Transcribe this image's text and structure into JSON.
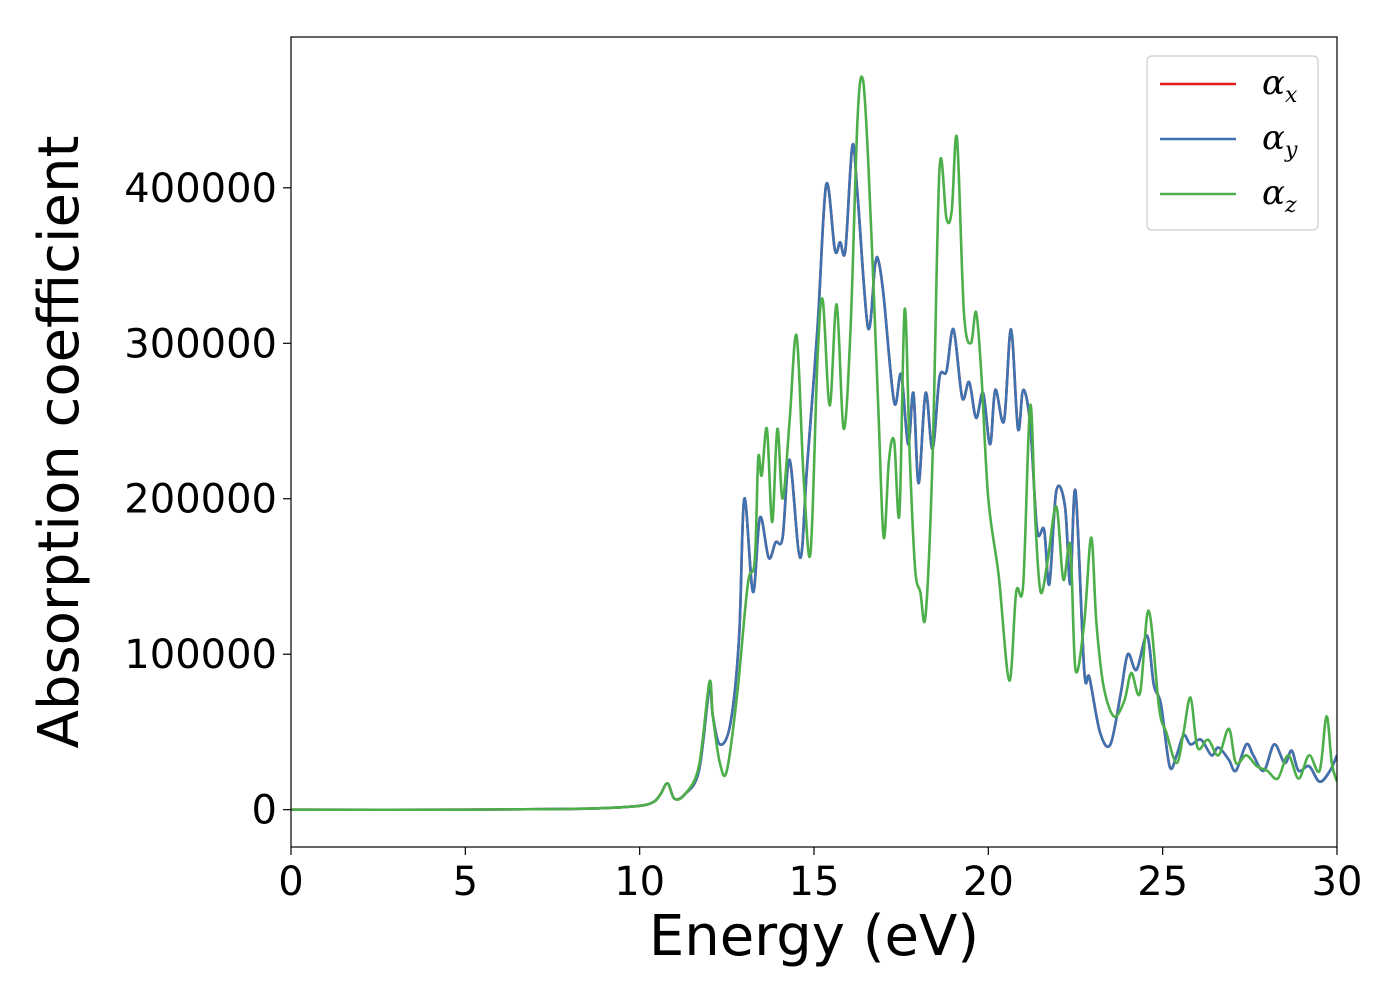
{
  "chart_data": {
    "type": "line",
    "title": "",
    "xlabel": "Energy (eV)",
    "ylabel": "Absorption coefficient",
    "xlim": [
      0,
      30
    ],
    "ylim": [
      -24000,
      497000
    ],
    "xticks": [
      0,
      5,
      10,
      15,
      20,
      25,
      30
    ],
    "yticks": [
      0,
      100000,
      200000,
      300000,
      400000
    ],
    "grid": false,
    "legend": {
      "position": "top-right"
    },
    "series": [
      {
        "name": "αx",
        "label_main": "α",
        "label_sub": "x",
        "color": "#e41a1c",
        "x": [
          0,
          5,
          8,
          9,
          10,
          10.4,
          10.6,
          10.8,
          11.0,
          11.3,
          11.7,
          12.0,
          12.1,
          12.3,
          12.6,
          12.85,
          13.0,
          13.25,
          13.45,
          13.7,
          13.9,
          14.1,
          14.3,
          14.6,
          14.8,
          15.1,
          15.35,
          15.6,
          15.75,
          15.9,
          16.1,
          16.25,
          16.55,
          16.75,
          16.85,
          17.0,
          17.3,
          17.5,
          17.7,
          17.85,
          18.0,
          18.2,
          18.4,
          18.6,
          18.8,
          19.0,
          19.25,
          19.45,
          19.65,
          19.85,
          20.05,
          20.2,
          20.45,
          20.65,
          20.85,
          21.0,
          21.2,
          21.4,
          21.6,
          21.75,
          21.95,
          22.2,
          22.35,
          22.5,
          22.75,
          22.9,
          23.2,
          23.5,
          23.8,
          24.0,
          24.25,
          24.55,
          24.75,
          24.95,
          25.2,
          25.4,
          25.6,
          25.8,
          26.1,
          26.4,
          26.6,
          26.9,
          27.1,
          27.4,
          27.6,
          27.9,
          28.2,
          28.5,
          28.7,
          28.9,
          29.2,
          29.5,
          29.8,
          30.0
        ],
        "y": [
          0,
          0,
          500,
          1000,
          2500,
          5000,
          10000,
          17000,
          7000,
          10000,
          25000,
          78000,
          60000,
          42000,
          55000,
          110000,
          200000,
          140000,
          188000,
          162000,
          172000,
          175000,
          225000,
          162000,
          220000,
          310000,
          402000,
          360000,
          365000,
          360000,
          427000,
          395000,
          310000,
          350000,
          353000,
          330000,
          262000,
          280000,
          235000,
          268000,
          210000,
          268000,
          232000,
          278000,
          282000,
          309000,
          265000,
          275000,
          252000,
          268000,
          235000,
          270000,
          250000,
          309000,
          245000,
          270000,
          248000,
          180000,
          180000,
          145000,
          205000,
          195000,
          145000,
          205000,
          90000,
          85000,
          50000,
          42000,
          75000,
          100000,
          90000,
          112000,
          80000,
          68000,
          28000,
          35000,
          48000,
          42000,
          45000,
          35000,
          40000,
          32000,
          25000,
          42000,
          35000,
          25000,
          42000,
          30000,
          38000,
          25000,
          28000,
          18000,
          25000,
          35000
        ]
      },
      {
        "name": "αy",
        "label_main": "α",
        "label_sub": "y",
        "color": "#3d73b0",
        "x": [
          0,
          5,
          8,
          9,
          10,
          10.4,
          10.6,
          10.8,
          11.0,
          11.3,
          11.7,
          12.0,
          12.1,
          12.3,
          12.6,
          12.85,
          13.0,
          13.25,
          13.45,
          13.7,
          13.9,
          14.1,
          14.3,
          14.6,
          14.8,
          15.1,
          15.35,
          15.6,
          15.75,
          15.9,
          16.1,
          16.25,
          16.55,
          16.75,
          16.85,
          17.0,
          17.3,
          17.5,
          17.7,
          17.85,
          18.0,
          18.2,
          18.4,
          18.6,
          18.8,
          19.0,
          19.25,
          19.45,
          19.65,
          19.85,
          20.05,
          20.2,
          20.45,
          20.65,
          20.85,
          21.0,
          21.2,
          21.4,
          21.6,
          21.75,
          21.95,
          22.2,
          22.35,
          22.5,
          22.75,
          22.9,
          23.2,
          23.5,
          23.8,
          24.0,
          24.25,
          24.55,
          24.75,
          24.95,
          25.2,
          25.4,
          25.6,
          25.8,
          26.1,
          26.4,
          26.6,
          26.9,
          27.1,
          27.4,
          27.6,
          27.9,
          28.2,
          28.5,
          28.7,
          28.9,
          29.2,
          29.5,
          29.8,
          30.0
        ],
        "y": [
          0,
          0,
          500,
          1000,
          2500,
          5000,
          10000,
          17000,
          7000,
          10000,
          25000,
          78000,
          60000,
          42000,
          55000,
          110000,
          200000,
          140000,
          188000,
          162000,
          172000,
          175000,
          225000,
          162000,
          220000,
          310000,
          402000,
          360000,
          365000,
          360000,
          427000,
          395000,
          310000,
          350000,
          353000,
          330000,
          262000,
          280000,
          235000,
          268000,
          210000,
          268000,
          232000,
          278000,
          282000,
          309000,
          265000,
          275000,
          252000,
          268000,
          235000,
          270000,
          250000,
          309000,
          245000,
          270000,
          248000,
          180000,
          180000,
          145000,
          205000,
          195000,
          145000,
          205000,
          90000,
          85000,
          50000,
          42000,
          75000,
          100000,
          90000,
          112000,
          80000,
          68000,
          28000,
          35000,
          48000,
          42000,
          45000,
          35000,
          40000,
          32000,
          25000,
          42000,
          35000,
          25000,
          42000,
          30000,
          38000,
          25000,
          28000,
          18000,
          25000,
          35000
        ]
      },
      {
        "name": "αz",
        "label_main": "α",
        "label_sub": "z",
        "color": "#4daf4a",
        "x": [
          0,
          5,
          8,
          9,
          10,
          10.4,
          10.6,
          10.8,
          11.0,
          11.3,
          11.7,
          12.0,
          12.1,
          12.3,
          12.5,
          12.8,
          13.1,
          13.3,
          13.4,
          13.5,
          13.65,
          13.8,
          13.95,
          14.1,
          14.3,
          14.5,
          14.7,
          14.9,
          15.1,
          15.25,
          15.45,
          15.65,
          15.85,
          16.05,
          16.25,
          16.4,
          16.55,
          16.7,
          16.85,
          17.0,
          17.15,
          17.3,
          17.45,
          17.6,
          17.75,
          17.9,
          18.05,
          18.2,
          18.4,
          18.6,
          18.8,
          18.95,
          19.1,
          19.3,
          19.5,
          19.65,
          19.8,
          20.0,
          20.3,
          20.6,
          20.8,
          21.0,
          21.2,
          21.35,
          21.5,
          21.7,
          21.95,
          22.15,
          22.35,
          22.5,
          22.75,
          22.95,
          23.1,
          23.3,
          23.6,
          23.9,
          24.1,
          24.35,
          24.6,
          24.9,
          25.1,
          25.4,
          25.6,
          25.8,
          26.0,
          26.3,
          26.6,
          26.9,
          27.1,
          27.4,
          27.7,
          28.0,
          28.3,
          28.6,
          28.9,
          29.2,
          29.5,
          29.7,
          29.85,
          30.0
        ],
        "y": [
          0,
          0,
          500,
          1000,
          2500,
          5000,
          10000,
          17000,
          7000,
          10000,
          28000,
          82000,
          60000,
          30000,
          25000,
          75000,
          145000,
          160000,
          226000,
          215000,
          245000,
          185000,
          245000,
          200000,
          250000,
          305000,
          215000,
          165000,
          290000,
          328000,
          260000,
          325000,
          245000,
          310000,
          445000,
          470000,
          420000,
          340000,
          255000,
          175000,
          225000,
          237000,
          190000,
          322000,
          225000,
          155000,
          140000,
          125000,
          225000,
          412000,
          380000,
          385000,
          432000,
          320000,
          300000,
          320000,
          280000,
          200000,
          150000,
          83000,
          140000,
          145000,
          260000,
          185000,
          140000,
          160000,
          195000,
          148000,
          170000,
          90000,
          120000,
          175000,
          120000,
          80000,
          60000,
          70000,
          88000,
          75000,
          128000,
          65000,
          50000,
          30000,
          50000,
          72000,
          40000,
          45000,
          35000,
          52000,
          30000,
          35000,
          28000,
          25000,
          20000,
          35000,
          20000,
          35000,
          25000,
          60000,
          30000,
          18000
        ]
      }
    ]
  }
}
